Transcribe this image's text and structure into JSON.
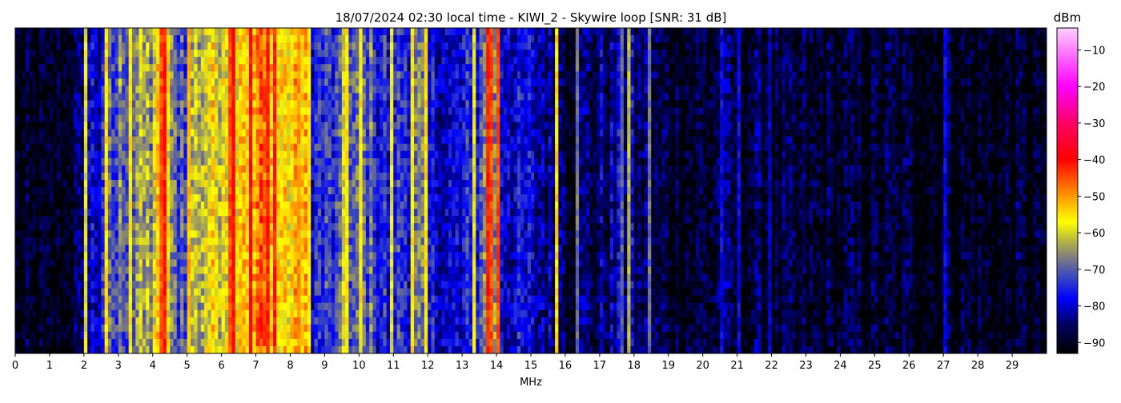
{
  "chart_data": {
    "type": "heatmap",
    "title": "18/07/2024 02:30 local time - KIWI_2 - Skywire loop [SNR: 31 dB]",
    "xlabel": "MHz",
    "xlim": [
      0,
      30
    ],
    "xticks": [
      "0",
      "1",
      "2",
      "3",
      "4",
      "5",
      "6",
      "7",
      "8",
      "9",
      "10",
      "11",
      "12",
      "13",
      "14",
      "15",
      "16",
      "17",
      "18",
      "19",
      "20",
      "21",
      "22",
      "23",
      "24",
      "25",
      "26",
      "27",
      "28",
      "29"
    ],
    "colorbar": {
      "label": "dBm",
      "range": [
        -93,
        -4
      ],
      "ticks": [
        "−10",
        "−20",
        "−30",
        "−40",
        "−50",
        "−60",
        "−70",
        "−80",
        "−90"
      ],
      "tick_values": [
        -10,
        -20,
        -30,
        -40,
        -50,
        -60,
        -70,
        -80,
        -90
      ],
      "colormap": [
        {
          "v": -93,
          "color": "#000000"
        },
        {
          "v": -85,
          "color": "#000060"
        },
        {
          "v": -78,
          "color": "#0000ff"
        },
        {
          "v": -72,
          "color": "#3a48c0"
        },
        {
          "v": -67,
          "color": "#7c7a84"
        },
        {
          "v": -62,
          "color": "#b8b840"
        },
        {
          "v": -57,
          "color": "#ffff00"
        },
        {
          "v": -50,
          "color": "#ff9900"
        },
        {
          "v": -40,
          "color": "#ff0000"
        },
        {
          "v": -30,
          "color": "#ff0066"
        },
        {
          "v": -20,
          "color": "#ff00ff"
        },
        {
          "v": -10,
          "color": "#ff80ff"
        },
        {
          "v": -4,
          "color": "#ffd0ff"
        }
      ]
    },
    "band_step_mhz": 0.5,
    "band_levels_dbm": [
      -92,
      -92,
      -91,
      -88,
      -80,
      -72,
      -68,
      -65,
      -58,
      -70,
      -62,
      -58,
      -55,
      -52,
      -48,
      -55,
      -55,
      -75,
      -74,
      -72,
      -70,
      -76,
      -74,
      -70,
      -78,
      -80,
      -78,
      -68,
      -78,
      -80,
      -82,
      -84,
      -87,
      -86,
      -84,
      -82,
      -86,
      -88,
      -89,
      -89,
      -88,
      -88,
      -88,
      -88,
      -90,
      -90,
      -90,
      -90,
      -90,
      -90,
      -90,
      -90,
      -90,
      -90,
      -90,
      -90,
      -91,
      -91,
      -91,
      -91
    ],
    "carriers": [
      {
        "mhz": 2.05,
        "dbm": -58
      },
      {
        "mhz": 2.6,
        "dbm": -55
      },
      {
        "mhz": 3.3,
        "dbm": -56
      },
      {
        "mhz": 4.25,
        "dbm": -45
      },
      {
        "mhz": 4.35,
        "dbm": -42
      },
      {
        "mhz": 5.1,
        "dbm": -52
      },
      {
        "mhz": 6.2,
        "dbm": -45
      },
      {
        "mhz": 6.3,
        "dbm": -40
      },
      {
        "mhz": 6.85,
        "dbm": -40
      },
      {
        "mhz": 7.3,
        "dbm": -42
      },
      {
        "mhz": 7.5,
        "dbm": -38
      },
      {
        "mhz": 7.6,
        "dbm": -42
      },
      {
        "mhz": 8.2,
        "dbm": -50
      },
      {
        "mhz": 8.5,
        "dbm": -55
      },
      {
        "mhz": 9.5,
        "dbm": -60
      },
      {
        "mhz": 9.7,
        "dbm": -56
      },
      {
        "mhz": 10.0,
        "dbm": -56
      },
      {
        "mhz": 10.9,
        "dbm": -58
      },
      {
        "mhz": 11.5,
        "dbm": -56
      },
      {
        "mhz": 11.9,
        "dbm": -55
      },
      {
        "mhz": 13.35,
        "dbm": -58
      },
      {
        "mhz": 13.7,
        "dbm": -42
      },
      {
        "mhz": 13.8,
        "dbm": -45
      },
      {
        "mhz": 14.0,
        "dbm": -45
      },
      {
        "mhz": 15.7,
        "dbm": -55
      },
      {
        "mhz": 16.3,
        "dbm": -68
      },
      {
        "mhz": 17.6,
        "dbm": -70
      },
      {
        "mhz": 17.85,
        "dbm": -62
      },
      {
        "mhz": 18.45,
        "dbm": -68
      },
      {
        "mhz": 20.5,
        "dbm": -78
      },
      {
        "mhz": 21.05,
        "dbm": -78
      },
      {
        "mhz": 22.0,
        "dbm": -80
      },
      {
        "mhz": 27.0,
        "dbm": -78
      }
    ]
  }
}
